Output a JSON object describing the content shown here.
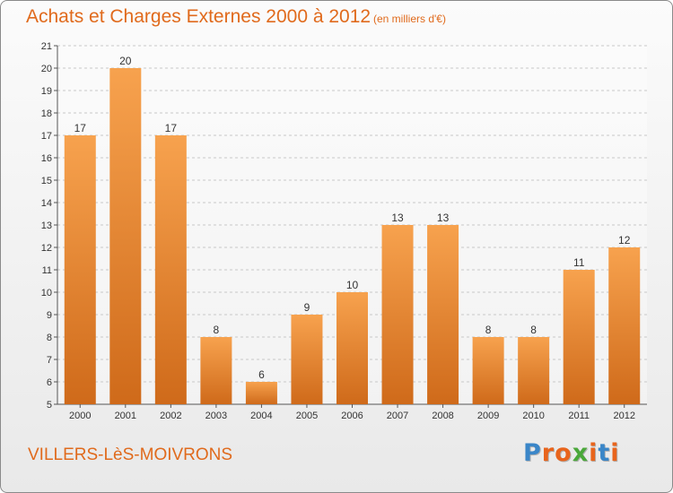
{
  "title": "Achats et Charges Externes 2000 à 2012",
  "subtitle": "(en milliers d'€)",
  "commune": "VILLERS-LèS-MOIVRONS",
  "logo": {
    "letters": [
      "P",
      "r",
      "o",
      "x",
      "i",
      "t",
      "i"
    ],
    "colors": [
      "#3a86c8",
      "#e8641c",
      "#e8641c",
      "#4aa83a",
      "#e8641c",
      "#3a86c8",
      "#e8641c"
    ]
  },
  "colors": {
    "accent": "#e06a1c",
    "bar_light": "#f7a24e",
    "bar_dark": "#cf6a1a"
  },
  "chart_data": {
    "type": "bar",
    "title": "Achats et Charges Externes 2000 à 2012",
    "subtitle": "(en milliers d'€)",
    "categories": [
      "2000",
      "2001",
      "2002",
      "2003",
      "2004",
      "2005",
      "2006",
      "2007",
      "2008",
      "2009",
      "2010",
      "2011",
      "2012"
    ],
    "values": [
      17,
      20,
      17,
      8,
      6,
      9,
      10,
      13,
      13,
      8,
      8,
      11,
      12
    ],
    "ylim": [
      5,
      21
    ],
    "yticks": [
      5,
      6,
      7,
      8,
      9,
      10,
      11,
      12,
      13,
      14,
      15,
      16,
      17,
      18,
      19,
      20,
      21
    ],
    "grid": true,
    "xlabel": "",
    "ylabel": ""
  }
}
